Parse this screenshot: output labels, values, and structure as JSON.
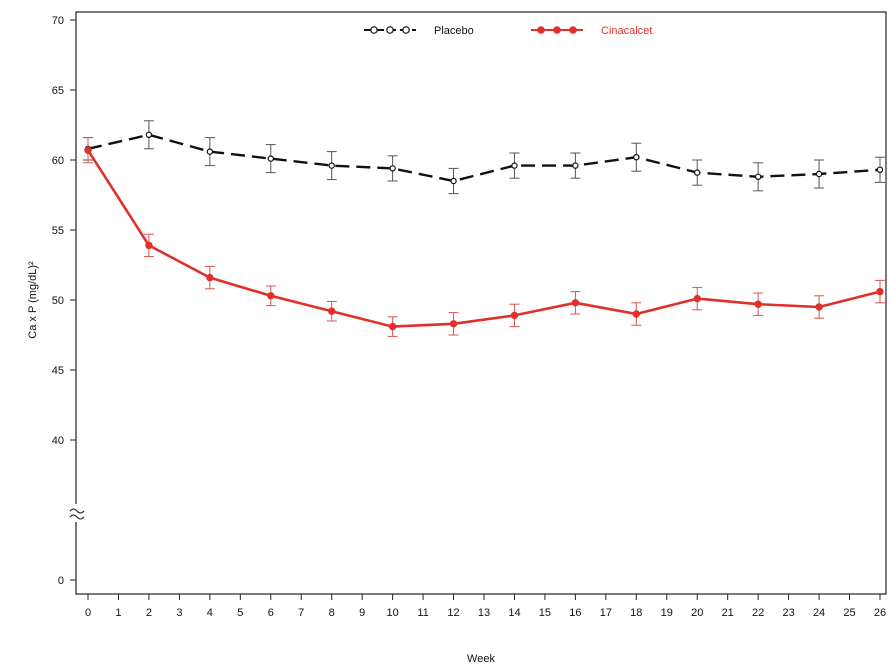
{
  "chart_data": {
    "type": "line",
    "title": "",
    "xlabel": "Week",
    "ylabel": "Ca x P (mg/dL)²",
    "x": [
      0,
      2,
      4,
      6,
      8,
      10,
      12,
      14,
      16,
      18,
      20,
      22,
      24,
      26
    ],
    "x_ticks": [
      0,
      1,
      2,
      3,
      4,
      5,
      6,
      7,
      8,
      9,
      10,
      11,
      12,
      13,
      14,
      15,
      16,
      17,
      18,
      19,
      20,
      21,
      22,
      23,
      24,
      25,
      26
    ],
    "xlim": [
      0,
      26
    ],
    "y_ticks": [
      0,
      40,
      45,
      50,
      55,
      60,
      65,
      70
    ],
    "y_break": [
      0,
      35
    ],
    "ylim": [
      0,
      70
    ],
    "grid": false,
    "legend_position": "top-center",
    "series": [
      {
        "name": "Placebo",
        "color": "#111111",
        "line_style": "dashed",
        "marker": "open-circle",
        "values": [
          60.8,
          61.8,
          60.6,
          60.1,
          59.6,
          59.4,
          58.5,
          59.6,
          59.6,
          60.2,
          59.1,
          58.8,
          59.0,
          59.3
        ],
        "error": [
          0.8,
          1.0,
          1.0,
          1.0,
          1.0,
          0.9,
          0.9,
          0.9,
          0.9,
          1.0,
          0.9,
          1.0,
          1.0,
          0.9
        ]
      },
      {
        "name": "Cinacalcet",
        "color": "#e0302b",
        "line_style": "solid",
        "marker": "filled-circle",
        "values": [
          60.7,
          53.9,
          51.6,
          50.3,
          49.2,
          48.1,
          48.3,
          48.9,
          49.8,
          49.0,
          50.1,
          49.7,
          49.5,
          50.6
        ],
        "error": [
          0.9,
          0.8,
          0.8,
          0.7,
          0.7,
          0.7,
          0.8,
          0.8,
          0.8,
          0.8,
          0.8,
          0.8,
          0.8,
          0.8
        ]
      }
    ]
  }
}
